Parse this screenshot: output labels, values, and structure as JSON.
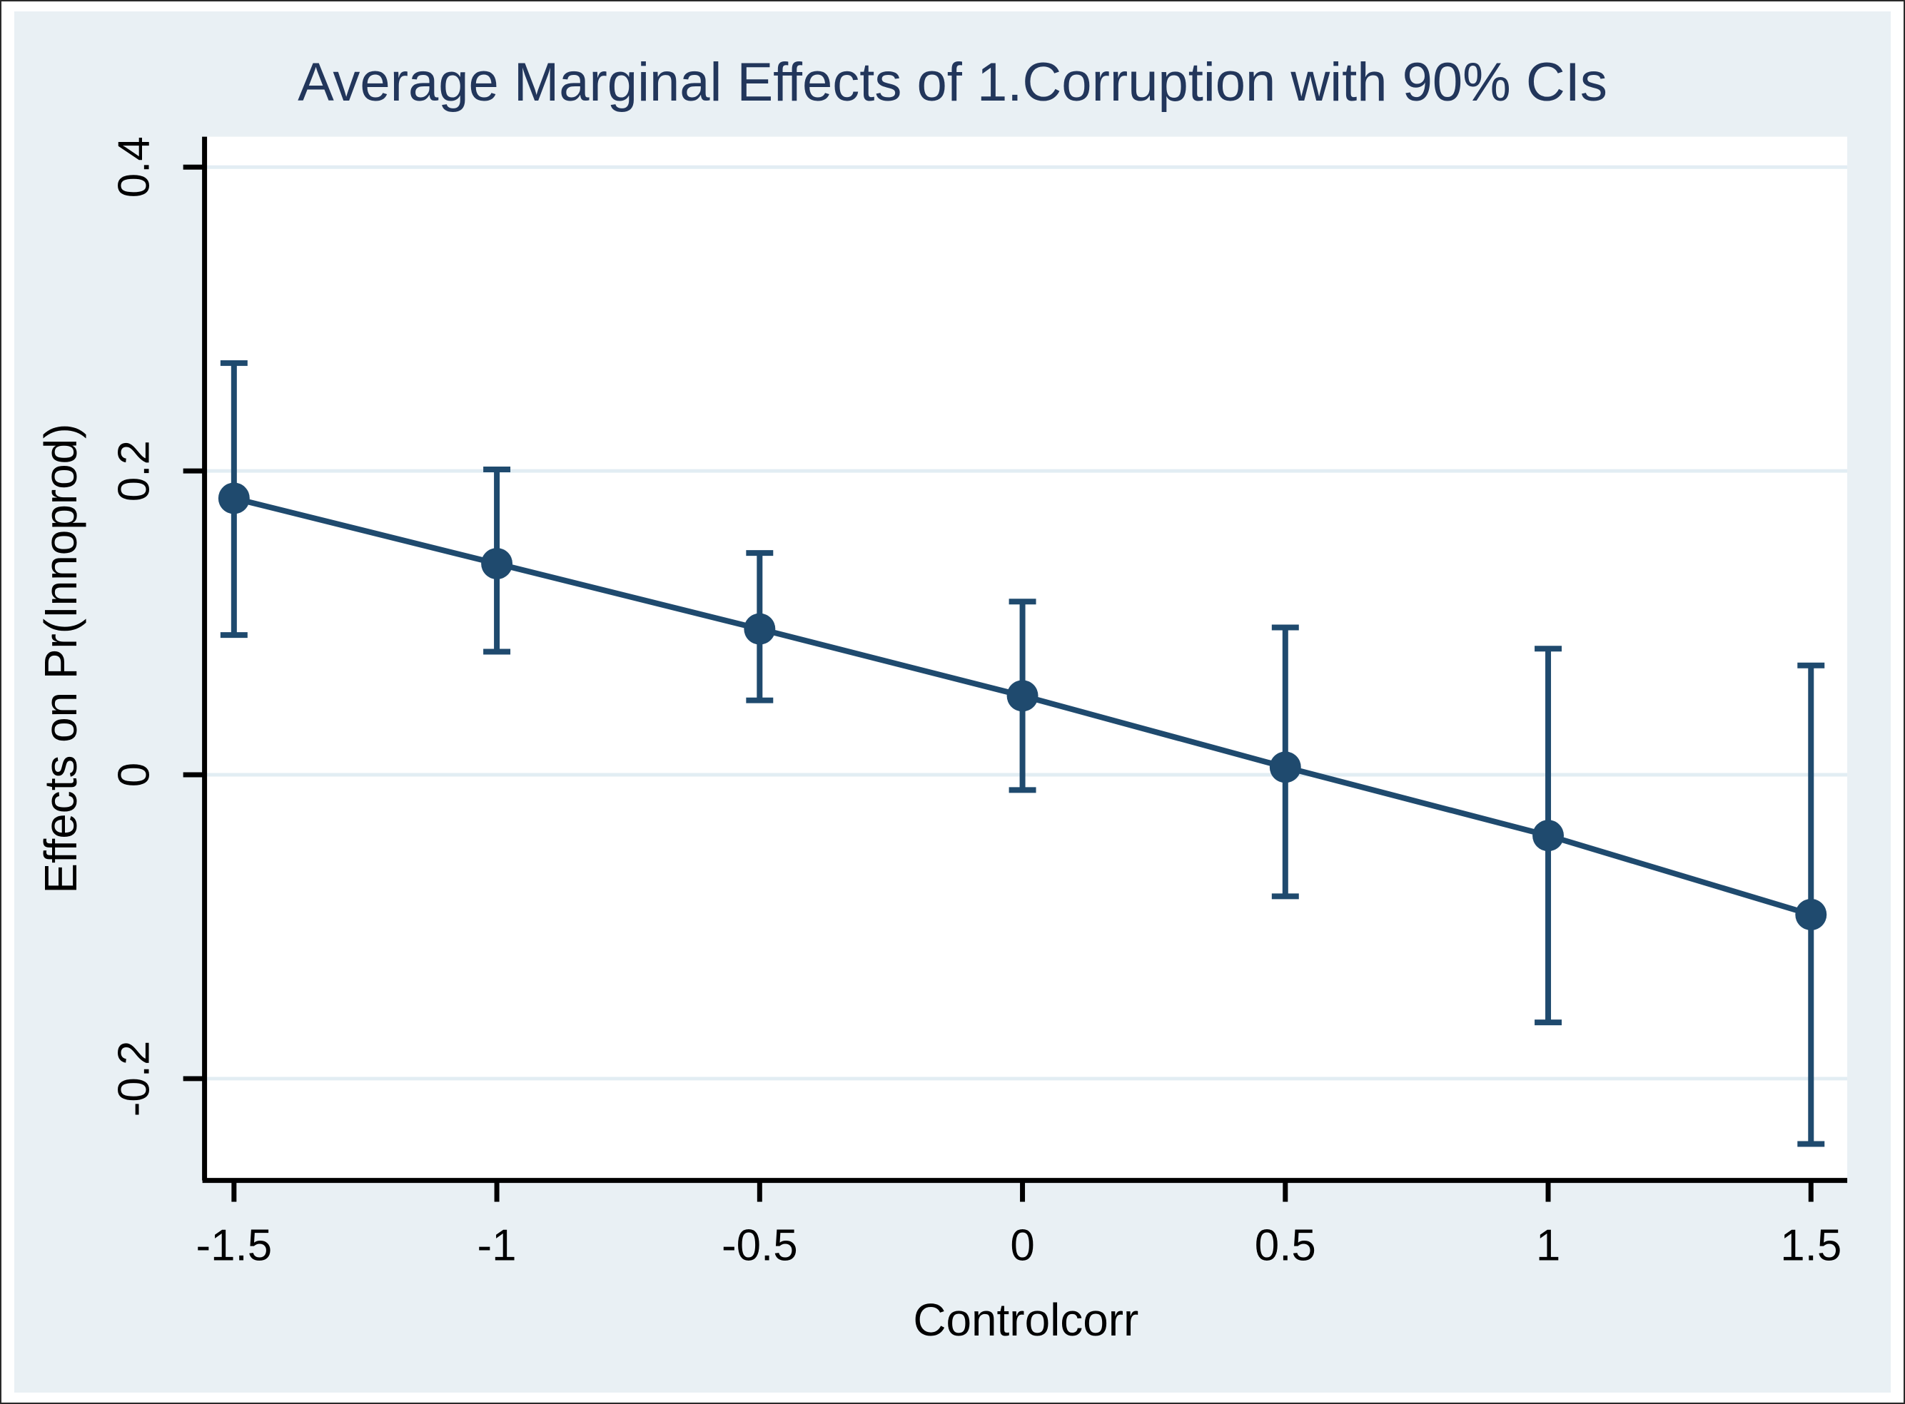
{
  "title": {
    "text": "Average Marginal Effects of 1.Corruption with 90% CIs",
    "color": "#22365b"
  },
  "x_axis": {
    "label": "Controlcorr",
    "tick_labels": [
      "-1.5",
      "-1",
      "-0.5",
      "0",
      "0.5",
      "1",
      "1.5"
    ],
    "tick_values": [
      -1.5,
      -1,
      -0.5,
      0,
      0.5,
      1,
      1.5
    ]
  },
  "y_axis": {
    "label": "Effects on Pr(Innoprod)",
    "tick_labels": [
      "0.4",
      "0.2",
      "0",
      "-0.2"
    ],
    "tick_values": [
      0.4,
      0.2,
      0,
      -0.2
    ]
  },
  "colors": {
    "series": "#1f4a6e",
    "panel_background": "#e9f0f4",
    "plot_background": "#ffffff",
    "gridline": "#e2edf3",
    "axis": "#000000",
    "tick_text": "#000000",
    "title_text": "#22365b"
  },
  "chart_data": {
    "type": "line",
    "title": "Average Marginal Effects of 1.Corruption with 90% CIs",
    "xlabel": "Controlcorr",
    "ylabel": "Effects on Pr(Innoprod)",
    "confidence_level": "90%",
    "legend": "none",
    "grid": "horizontal",
    "xlim": [
      -1.556,
      1.569
    ],
    "ylim": [
      -0.267,
      0.42
    ],
    "x_ticks": [
      -1.5,
      -1,
      -0.5,
      0,
      0.5,
      1,
      1.5
    ],
    "y_ticks": [
      0.4,
      0.2,
      0,
      -0.2
    ],
    "series": [
      {
        "name": "Average marginal effect of 1.Corruption",
        "x": [
          -1.5,
          -1.0,
          -0.5,
          0.0,
          0.5,
          1.0,
          1.5
        ],
        "y": [
          0.182,
          0.139,
          0.096,
          0.052,
          0.005,
          -0.04,
          -0.092
        ],
        "ci_low": [
          0.092,
          0.081,
          0.049,
          -0.01,
          -0.08,
          -0.163,
          -0.243
        ],
        "ci_high": [
          0.271,
          0.201,
          0.146,
          0.114,
          0.097,
          0.083,
          0.072
        ]
      }
    ]
  }
}
